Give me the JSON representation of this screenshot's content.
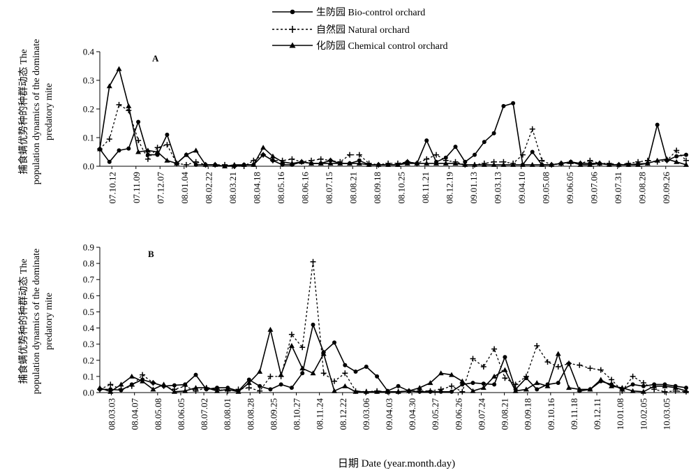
{
  "figure": {
    "xlabel": "日期 Date (year.month.day)"
  },
  "legend": {
    "position": "top-center",
    "entries": [
      {
        "label": "生防园 Bio-control orchard",
        "line": "solid",
        "marker": "circle"
      },
      {
        "label": "自然园 Natural orchard",
        "line": "dashed",
        "marker": "plus"
      },
      {
        "label": "化防园 Chemical control orchard",
        "line": "solid",
        "marker": "triangle"
      }
    ]
  },
  "chart_data": [
    {
      "type": "line",
      "panel": "A",
      "ylabel_line1": "捕食螨优势种的种群动态 The",
      "ylabel_line2": "population dynamics of the dominate",
      "ylabel_line3": "predatory mite",
      "ylim": [
        0,
        0.4
      ],
      "yticks": [
        "0.0",
        "0.1",
        "0.2",
        "0.3",
        "0.4"
      ],
      "xlim": [
        0,
        70
      ],
      "xtick_labels": [
        "07.10.12",
        "07.11.09",
        "07.12.07",
        "08.01.04",
        "08.02.22",
        "08.03.21",
        "08.04.18",
        "08.05.16",
        "08.06.16",
        "08.07.15",
        "08.08.21",
        "08.09.18",
        "08.10.25",
        "08.11.21",
        "08.12.19",
        "09.01.13",
        "09.03.13",
        "09.04.10",
        "09.05.08",
        "09.06.05",
        "09.07.06",
        "09.07.31",
        "09.08.28",
        "09.09.26"
      ],
      "grid": false,
      "series": [
        {
          "name": "生防园 Bio-control orchard",
          "style": "bio",
          "values": [
            0.06,
            0.015,
            0.055,
            0.062,
            0.155,
            0.04,
            0.04,
            0.11,
            0.01,
            0.04,
            0.005,
            0.005,
            0.005,
            0.0,
            0.0,
            0.005,
            0.005,
            0.04,
            0.02,
            0.005,
            0.005,
            0.015,
            0.01,
            0.01,
            0.02,
            0.01,
            0.01,
            0.02,
            0.005,
            0.005,
            0.005,
            0.005,
            0.015,
            0.01,
            0.09,
            0.015,
            0.03,
            0.068,
            0.015,
            0.04,
            0.085,
            0.115,
            0.21,
            0.22,
            0.005,
            0.05,
            0.005,
            0.005,
            0.01,
            0.015,
            0.01,
            0.01,
            0.01,
            0.005,
            0.005,
            0.005,
            0.008,
            0.01,
            0.145,
            0.02,
            0.035,
            0.04
          ]
        },
        {
          "name": "自然园 Natural orchard",
          "style": "nat",
          "values": [
            0.06,
            0.095,
            0.215,
            0.195,
            0.09,
            0.025,
            0.065,
            0.075,
            0.01,
            0.005,
            0.015,
            0.005,
            0.005,
            0.005,
            0.0,
            0.0,
            0.02,
            0.04,
            0.02,
            0.02,
            0.025,
            0.015,
            0.02,
            0.025,
            0.02,
            0.015,
            0.04,
            0.04,
            0.01,
            0.005,
            0.01,
            0.01,
            0.015,
            0.01,
            0.025,
            0.04,
            0.02,
            0.015,
            0.005,
            0.005,
            0.01,
            0.015,
            0.015,
            0.01,
            0.04,
            0.13,
            0.02,
            0.005,
            0.01,
            0.01,
            0.01,
            0.02,
            0.01,
            0.01,
            0.005,
            0.01,
            0.015,
            0.02,
            0.015,
            0.02,
            0.055,
            0.02
          ]
        },
        {
          "name": "化防园 Chemical control orchard",
          "style": "chem",
          "values": [
            0.06,
            0.28,
            0.34,
            0.21,
            0.05,
            0.055,
            0.05,
            0.02,
            0.01,
            0.04,
            0.055,
            0.005,
            0.005,
            0.0,
            0.005,
            0.005,
            0.005,
            0.065,
            0.035,
            0.015,
            0.01,
            0.015,
            0.01,
            0.01,
            0.01,
            0.01,
            0.01,
            0.01,
            0.005,
            0.005,
            0.005,
            0.005,
            0.01,
            0.01,
            0.01,
            0.01,
            0.01,
            0.01,
            0.005,
            0.005,
            0.005,
            0.005,
            0.005,
            0.005,
            0.005,
            0.005,
            0.005,
            0.005,
            0.01,
            0.015,
            0.005,
            0.005,
            0.01,
            0.005,
            0.005,
            0.005,
            0.005,
            0.01,
            0.02,
            0.025,
            0.015,
            0.005
          ]
        }
      ]
    },
    {
      "type": "line",
      "panel": "B",
      "ylabel_line1": "捕食螨优势种的种群动态 The",
      "ylabel_line2": "population dynamics of the dominate",
      "ylabel_line3": "predatory mite",
      "ylim": [
        0,
        0.9
      ],
      "yticks": [
        "0.0",
        "0.1",
        "0.2",
        "0.3",
        "0.4",
        "0.5",
        "0.6",
        "0.7",
        "0.8",
        "0.9"
      ],
      "xlim": [
        0,
        72
      ],
      "xtick_labels": [
        "08.03.03",
        "08.04.07",
        "08.05.08",
        "08.06.05",
        "08.07.02",
        "08.08.01",
        "08.08.28",
        "08.09.25",
        "08.10.27",
        "08.11.24",
        "08.12.22",
        "09.03.06",
        "09.04.03",
        "09.04.30",
        "09.05.27",
        "09.06.26",
        "09.07.24",
        "09.08.21",
        "09.09.18",
        "09.10.16",
        "09.11.18",
        "09.12.11",
        "10.01.08",
        "10.02.05",
        "10.03.05"
      ],
      "grid": false,
      "series": [
        {
          "name": "生防园 Bio-control orchard",
          "style": "bio",
          "values": [
            0.02,
            0.02,
            0.015,
            0.05,
            0.08,
            0.06,
            0.04,
            0.045,
            0.05,
            0.11,
            0.02,
            0.03,
            0.03,
            0.01,
            0.08,
            0.04,
            0.02,
            0.05,
            0.03,
            0.12,
            0.42,
            0.25,
            0.31,
            0.17,
            0.13,
            0.16,
            0.1,
            0.01,
            0.04,
            0.01,
            0.005,
            0.005,
            0.005,
            0.005,
            0.05,
            0.06,
            0.055,
            0.05,
            0.22,
            0.02,
            0.09,
            0.02,
            0.05,
            0.06,
            0.18,
            0.01,
            0.02,
            0.07,
            0.05,
            0.02,
            0.05,
            0.04,
            0.05,
            0.05,
            0.04,
            0.03
          ]
        },
        {
          "name": "自然园 Natural orchard",
          "style": "nat",
          "values": [
            0.02,
            0.05,
            0.02,
            0.04,
            0.11,
            0.06,
            0.04,
            0.02,
            0.04,
            0.01,
            0.03,
            0.02,
            0.01,
            0.02,
            0.03,
            0.01,
            0.1,
            0.1,
            0.36,
            0.28,
            0.81,
            0.12,
            0.07,
            0.12,
            0.01,
            0.005,
            0.01,
            0.005,
            0.005,
            0.01,
            0.01,
            0.01,
            0.02,
            0.04,
            0.005,
            0.21,
            0.16,
            0.27,
            0.09,
            0.05,
            0.1,
            0.29,
            0.19,
            0.16,
            0.18,
            0.17,
            0.15,
            0.14,
            0.08,
            0.01,
            0.1,
            0.06,
            0.02,
            0.005,
            0.01,
            0.005
          ]
        },
        {
          "name": "化防园 Chemical control orchard",
          "style": "chem",
          "values": [
            0.03,
            0.005,
            0.05,
            0.1,
            0.07,
            0.02,
            0.05,
            0.005,
            0.01,
            0.03,
            0.03,
            0.01,
            0.02,
            0.005,
            0.06,
            0.13,
            0.39,
            0.11,
            0.29,
            0.15,
            0.12,
            0.24,
            0.01,
            0.04,
            0.005,
            0.005,
            0.005,
            0.005,
            0.005,
            0.01,
            0.03,
            0.06,
            0.12,
            0.11,
            0.07,
            0.01,
            0.03,
            0.1,
            0.14,
            0.01,
            0.02,
            0.06,
            0.04,
            0.24,
            0.03,
            0.02,
            0.02,
            0.08,
            0.04,
            0.03,
            0.01,
            0.005,
            0.04,
            0.04,
            0.03,
            0.01
          ]
        }
      ]
    }
  ]
}
